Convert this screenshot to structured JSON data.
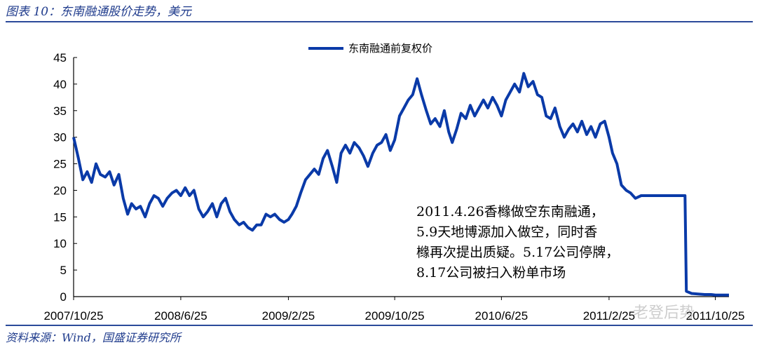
{
  "header": {
    "title": "图表 10：东南融通股价走势，美元"
  },
  "footer": {
    "source": "资料来源：Wind，国盛证券研究所"
  },
  "annotation": {
    "lines": [
      "2011.4.26香橼做空东南融通，",
      "5.9天地博源加入做空，同时香",
      "橼再次提出质疑。5.17公司停牌，",
      "8.17公司被扫入粉单市场"
    ]
  },
  "watermark": {
    "text": "老登后势"
  },
  "chart_data": {
    "type": "line",
    "xlabel": "",
    "ylabel": "",
    "ylim": [
      0,
      45
    ],
    "yticks": [
      0,
      5,
      10,
      15,
      20,
      25,
      30,
      35,
      40,
      45
    ],
    "xticks": [
      "2007/10/25",
      "2008/6/25",
      "2009/2/25",
      "2009/10/25",
      "2010/6/25",
      "2011/2/25",
      "2011/10/25"
    ],
    "legend": {
      "position": "top-center"
    },
    "grid": false,
    "colors": {
      "series": "#0a3aa8"
    },
    "series": [
      {
        "name": "东南融通前复权价",
        "points": [
          [
            "2007-10-25",
            30.0
          ],
          [
            "2007-11-05",
            26.0
          ],
          [
            "2007-11-15",
            22.0
          ],
          [
            "2007-11-25",
            23.5
          ],
          [
            "2007-12-05",
            21.5
          ],
          [
            "2007-12-15",
            25.0
          ],
          [
            "2007-12-25",
            23.0
          ],
          [
            "2008-01-05",
            22.5
          ],
          [
            "2008-01-15",
            23.5
          ],
          [
            "2008-01-25",
            21.0
          ],
          [
            "2008-02-05",
            23.0
          ],
          [
            "2008-02-15",
            18.5
          ],
          [
            "2008-02-25",
            15.5
          ],
          [
            "2008-03-05",
            17.5
          ],
          [
            "2008-03-15",
            16.5
          ],
          [
            "2008-03-25",
            17.0
          ],
          [
            "2008-04-05",
            15.0
          ],
          [
            "2008-04-15",
            17.5
          ],
          [
            "2008-04-25",
            19.0
          ],
          [
            "2008-05-05",
            18.5
          ],
          [
            "2008-05-15",
            17.0
          ],
          [
            "2008-05-25",
            18.5
          ],
          [
            "2008-06-05",
            19.5
          ],
          [
            "2008-06-15",
            20.0
          ],
          [
            "2008-06-25",
            19.0
          ],
          [
            "2008-07-05",
            20.5
          ],
          [
            "2008-07-15",
            19.0
          ],
          [
            "2008-07-25",
            20.0
          ],
          [
            "2008-08-05",
            16.5
          ],
          [
            "2008-08-15",
            15.0
          ],
          [
            "2008-08-25",
            16.0
          ],
          [
            "2008-09-05",
            17.5
          ],
          [
            "2008-09-15",
            15.0
          ],
          [
            "2008-09-25",
            17.5
          ],
          [
            "2008-10-05",
            18.5
          ],
          [
            "2008-10-15",
            16.0
          ],
          [
            "2008-10-25",
            14.5
          ],
          [
            "2008-11-05",
            13.5
          ],
          [
            "2008-11-15",
            14.0
          ],
          [
            "2008-11-25",
            13.0
          ],
          [
            "2008-12-05",
            12.5
          ],
          [
            "2008-12-15",
            13.5
          ],
          [
            "2008-12-25",
            13.5
          ],
          [
            "2009-01-05",
            15.5
          ],
          [
            "2009-01-15",
            15.0
          ],
          [
            "2009-01-25",
            15.5
          ],
          [
            "2009-02-05",
            14.5
          ],
          [
            "2009-02-15",
            14.0
          ],
          [
            "2009-02-25",
            14.5
          ],
          [
            "2009-03-05",
            15.5
          ],
          [
            "2009-03-15",
            17.0
          ],
          [
            "2009-03-25",
            19.5
          ],
          [
            "2009-04-05",
            22.0
          ],
          [
            "2009-04-15",
            23.0
          ],
          [
            "2009-04-25",
            24.0
          ],
          [
            "2009-05-05",
            23.0
          ],
          [
            "2009-05-15",
            26.0
          ],
          [
            "2009-05-25",
            27.5
          ],
          [
            "2009-06-05",
            24.5
          ],
          [
            "2009-06-15",
            21.5
          ],
          [
            "2009-06-25",
            27.0
          ],
          [
            "2009-07-05",
            28.5
          ],
          [
            "2009-07-15",
            27.0
          ],
          [
            "2009-07-25",
            29.0
          ],
          [
            "2009-08-05",
            28.0
          ],
          [
            "2009-08-15",
            26.5
          ],
          [
            "2009-08-25",
            24.5
          ],
          [
            "2009-09-05",
            27.0
          ],
          [
            "2009-09-15",
            28.5
          ],
          [
            "2009-09-25",
            29.0
          ],
          [
            "2009-10-05",
            30.5
          ],
          [
            "2009-10-15",
            27.5
          ],
          [
            "2009-10-25",
            29.5
          ],
          [
            "2009-11-05",
            34.0
          ],
          [
            "2009-11-15",
            35.5
          ],
          [
            "2009-11-25",
            37.0
          ],
          [
            "2009-12-05",
            38.0
          ],
          [
            "2009-12-15",
            41.0
          ],
          [
            "2009-12-25",
            38.0
          ],
          [
            "2010-01-05",
            35.0
          ],
          [
            "2010-01-15",
            32.5
          ],
          [
            "2010-01-25",
            33.5
          ],
          [
            "2010-02-05",
            32.0
          ],
          [
            "2010-02-15",
            35.0
          ],
          [
            "2010-02-25",
            31.0
          ],
          [
            "2010-03-05",
            29.0
          ],
          [
            "2010-03-15",
            31.5
          ],
          [
            "2010-03-25",
            34.5
          ],
          [
            "2010-04-05",
            33.5
          ],
          [
            "2010-04-15",
            36.0
          ],
          [
            "2010-04-25",
            34.0
          ],
          [
            "2010-05-05",
            35.5
          ],
          [
            "2010-05-15",
            37.0
          ],
          [
            "2010-05-25",
            35.5
          ],
          [
            "2010-06-05",
            37.5
          ],
          [
            "2010-06-15",
            36.0
          ],
          [
            "2010-06-25",
            34.0
          ],
          [
            "2010-07-05",
            37.0
          ],
          [
            "2010-07-15",
            38.5
          ],
          [
            "2010-07-25",
            40.0
          ],
          [
            "2010-08-05",
            38.5
          ],
          [
            "2010-08-15",
            42.0
          ],
          [
            "2010-08-25",
            39.5
          ],
          [
            "2010-09-05",
            40.5
          ],
          [
            "2010-09-15",
            38.0
          ],
          [
            "2010-09-25",
            37.5
          ],
          [
            "2010-10-05",
            34.0
          ],
          [
            "2010-10-15",
            33.5
          ],
          [
            "2010-10-25",
            35.5
          ],
          [
            "2010-11-05",
            32.0
          ],
          [
            "2010-11-15",
            30.0
          ],
          [
            "2010-11-25",
            31.5
          ],
          [
            "2010-12-05",
            32.5
          ],
          [
            "2010-12-15",
            31.0
          ],
          [
            "2010-12-25",
            33.0
          ],
          [
            "2011-01-05",
            30.5
          ],
          [
            "2011-01-15",
            32.0
          ],
          [
            "2011-01-25",
            30.0
          ],
          [
            "2011-02-05",
            32.5
          ],
          [
            "2011-02-15",
            33.0
          ],
          [
            "2011-02-25",
            30.0
          ],
          [
            "2011-03-05",
            27.0
          ],
          [
            "2011-03-15",
            25.0
          ],
          [
            "2011-03-25",
            21.0
          ],
          [
            "2011-04-05",
            20.0
          ],
          [
            "2011-04-15",
            19.5
          ],
          [
            "2011-04-26",
            18.5
          ],
          [
            "2011-05-09",
            19.0
          ],
          [
            "2011-05-17",
            19.0
          ],
          [
            "2011-07-01",
            19.0
          ],
          [
            "2011-08-10",
            19.0
          ],
          [
            "2011-08-17",
            19.0
          ],
          [
            "2011-08-20",
            1.0
          ],
          [
            "2011-09-01",
            0.6
          ],
          [
            "2011-09-15",
            0.5
          ],
          [
            "2011-10-01",
            0.4
          ],
          [
            "2011-10-15",
            0.4
          ],
          [
            "2011-10-25",
            0.3
          ],
          [
            "2011-11-05",
            0.3
          ],
          [
            "2011-11-25",
            0.3
          ]
        ]
      }
    ]
  }
}
